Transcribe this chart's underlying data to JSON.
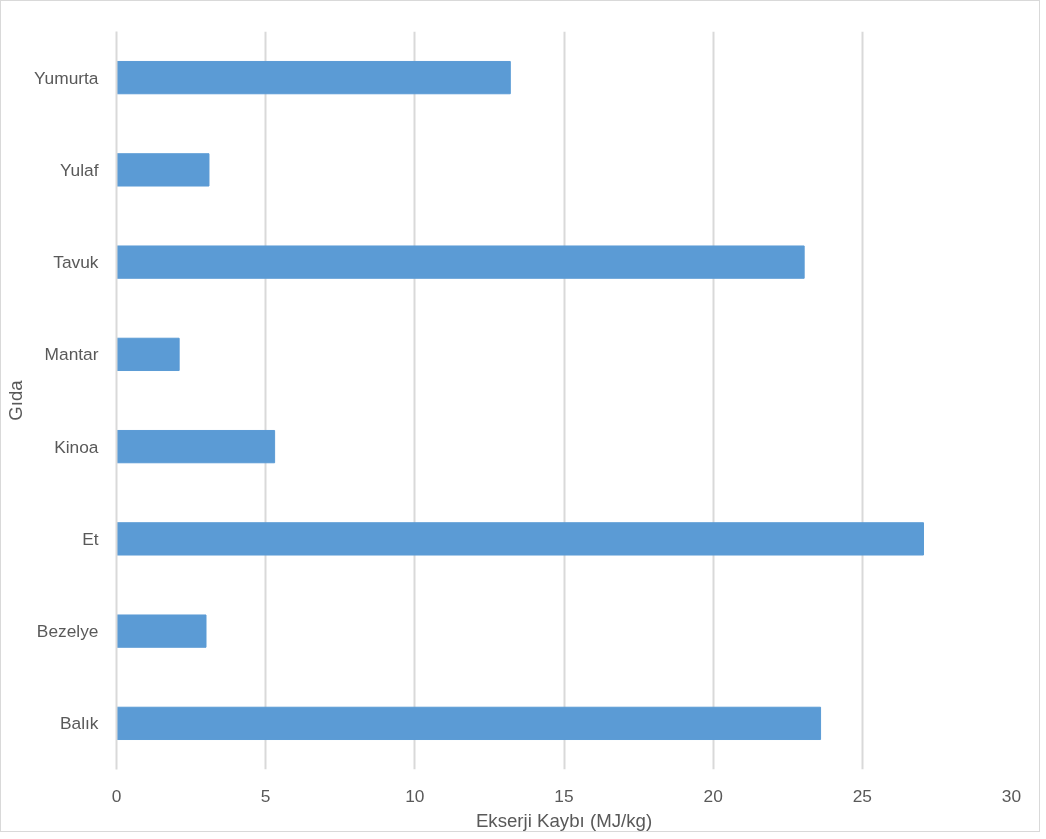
{
  "chart_data": {
    "type": "bar",
    "orientation": "horizontal",
    "xlabel": "Ekserji Kaybı (MJ/kg)",
    "ylabel": "Gıda",
    "categories": [
      "Yumurta",
      "Yulaf",
      "Tavuk",
      "Mantar",
      "Kinoa",
      "Et",
      "Bezelye",
      "Balık"
    ],
    "values": [
      13.2,
      3.1,
      23.05,
      2.1,
      5.3,
      27.05,
      3.0,
      23.6
    ],
    "color": "#5b9bd5",
    "xlim": [
      0,
      30
    ],
    "xticks": [
      0,
      5,
      10,
      15,
      20,
      25,
      30
    ],
    "grid": "x"
  }
}
